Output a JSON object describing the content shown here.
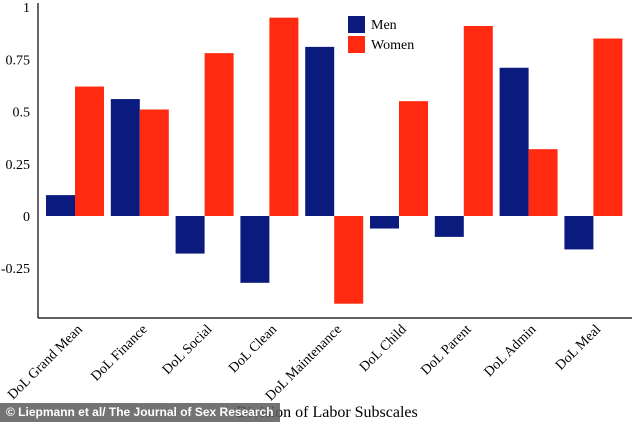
{
  "chart_data": {
    "type": "bar",
    "title": "",
    "xlabel": "Division of Labor Subscales",
    "ylabel": "",
    "ylim": [
      -0.5,
      1
    ],
    "yticks": [
      "1",
      "0.75",
      "0.5",
      "0.25",
      "0",
      "-0.25"
    ],
    "grid": false,
    "legend_position": "top-center",
    "categories": [
      "DoL Grand Mean",
      "DoL Finance",
      "DoL Social",
      "DoL Clean",
      "DoL Maintenance",
      "DoL Child",
      "DoL Parent",
      "DoL Admin",
      "DoL Meal"
    ],
    "series": [
      {
        "name": "Men",
        "color": "#0a1a7d",
        "values": [
          0.1,
          0.56,
          -0.18,
          -0.32,
          0.81,
          -0.06,
          -0.1,
          0.71,
          -0.16
        ]
      },
      {
        "name": "Women",
        "color": "#ff2a0f",
        "values": [
          0.62,
          0.51,
          0.78,
          0.95,
          -0.42,
          0.55,
          0.91,
          0.32,
          0.85
        ]
      }
    ]
  },
  "credit": "© Liepmann et al/ The Journal of Sex Research"
}
